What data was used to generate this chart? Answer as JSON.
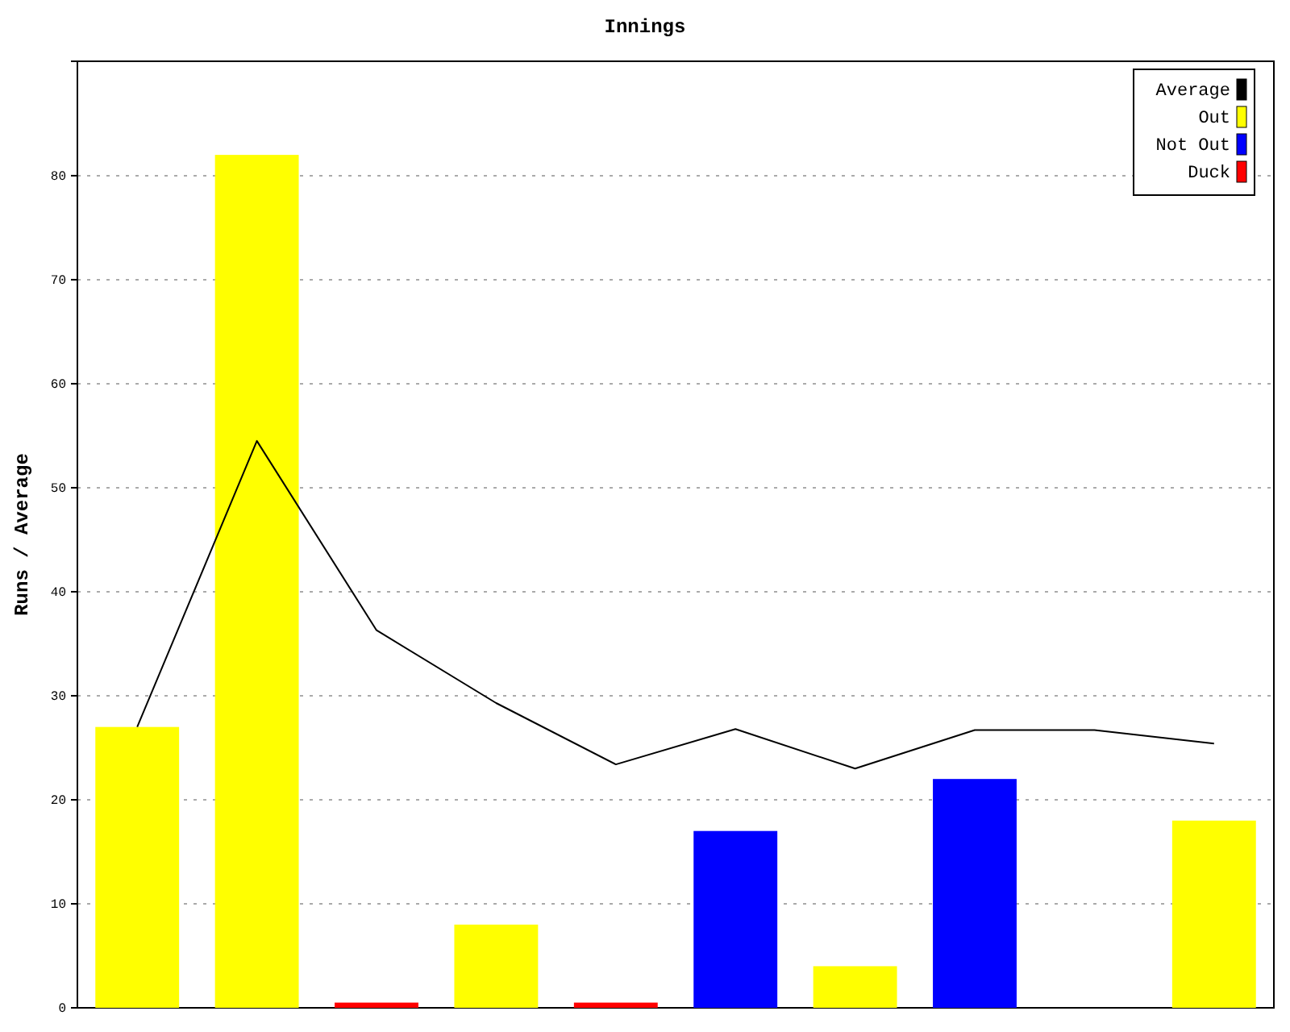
{
  "chart_data": {
    "type": "bar",
    "title": "Innings",
    "ylabel": "Runs / Average",
    "categories": [
      null,
      null,
      null,
      null,
      null,
      null,
      null,
      null,
      null,
      null
    ],
    "ylim": [
      0,
      91
    ],
    "yticks": [
      0,
      10,
      20,
      30,
      40,
      50,
      60,
      70,
      80
    ],
    "grid": "y",
    "legend": "top right",
    "tick_labels": "y",
    "marker": "none",
    "line_style": "solid",
    "series": [
      {
        "name": "Average",
        "type": "line",
        "color": "#000000",
        "values": [
          27,
          54.5,
          36.3,
          29.3,
          23.4,
          26.8,
          23,
          26.7,
          26.7,
          25.4
        ]
      },
      {
        "name": "Out",
        "color": "#ffff00",
        "values": [
          27,
          82,
          null,
          8,
          null,
          null,
          4,
          null,
          null,
          18
        ]
      },
      {
        "name": "Not Out",
        "color": "#0000ff",
        "values": [
          null,
          null,
          null,
          null,
          null,
          17,
          null,
          22,
          null,
          null
        ]
      },
      {
        "name": "Duck",
        "color": "#ff0000",
        "values": [
          null,
          null,
          0.5,
          null,
          0.5,
          null,
          null,
          null,
          null,
          null
        ]
      }
    ]
  }
}
